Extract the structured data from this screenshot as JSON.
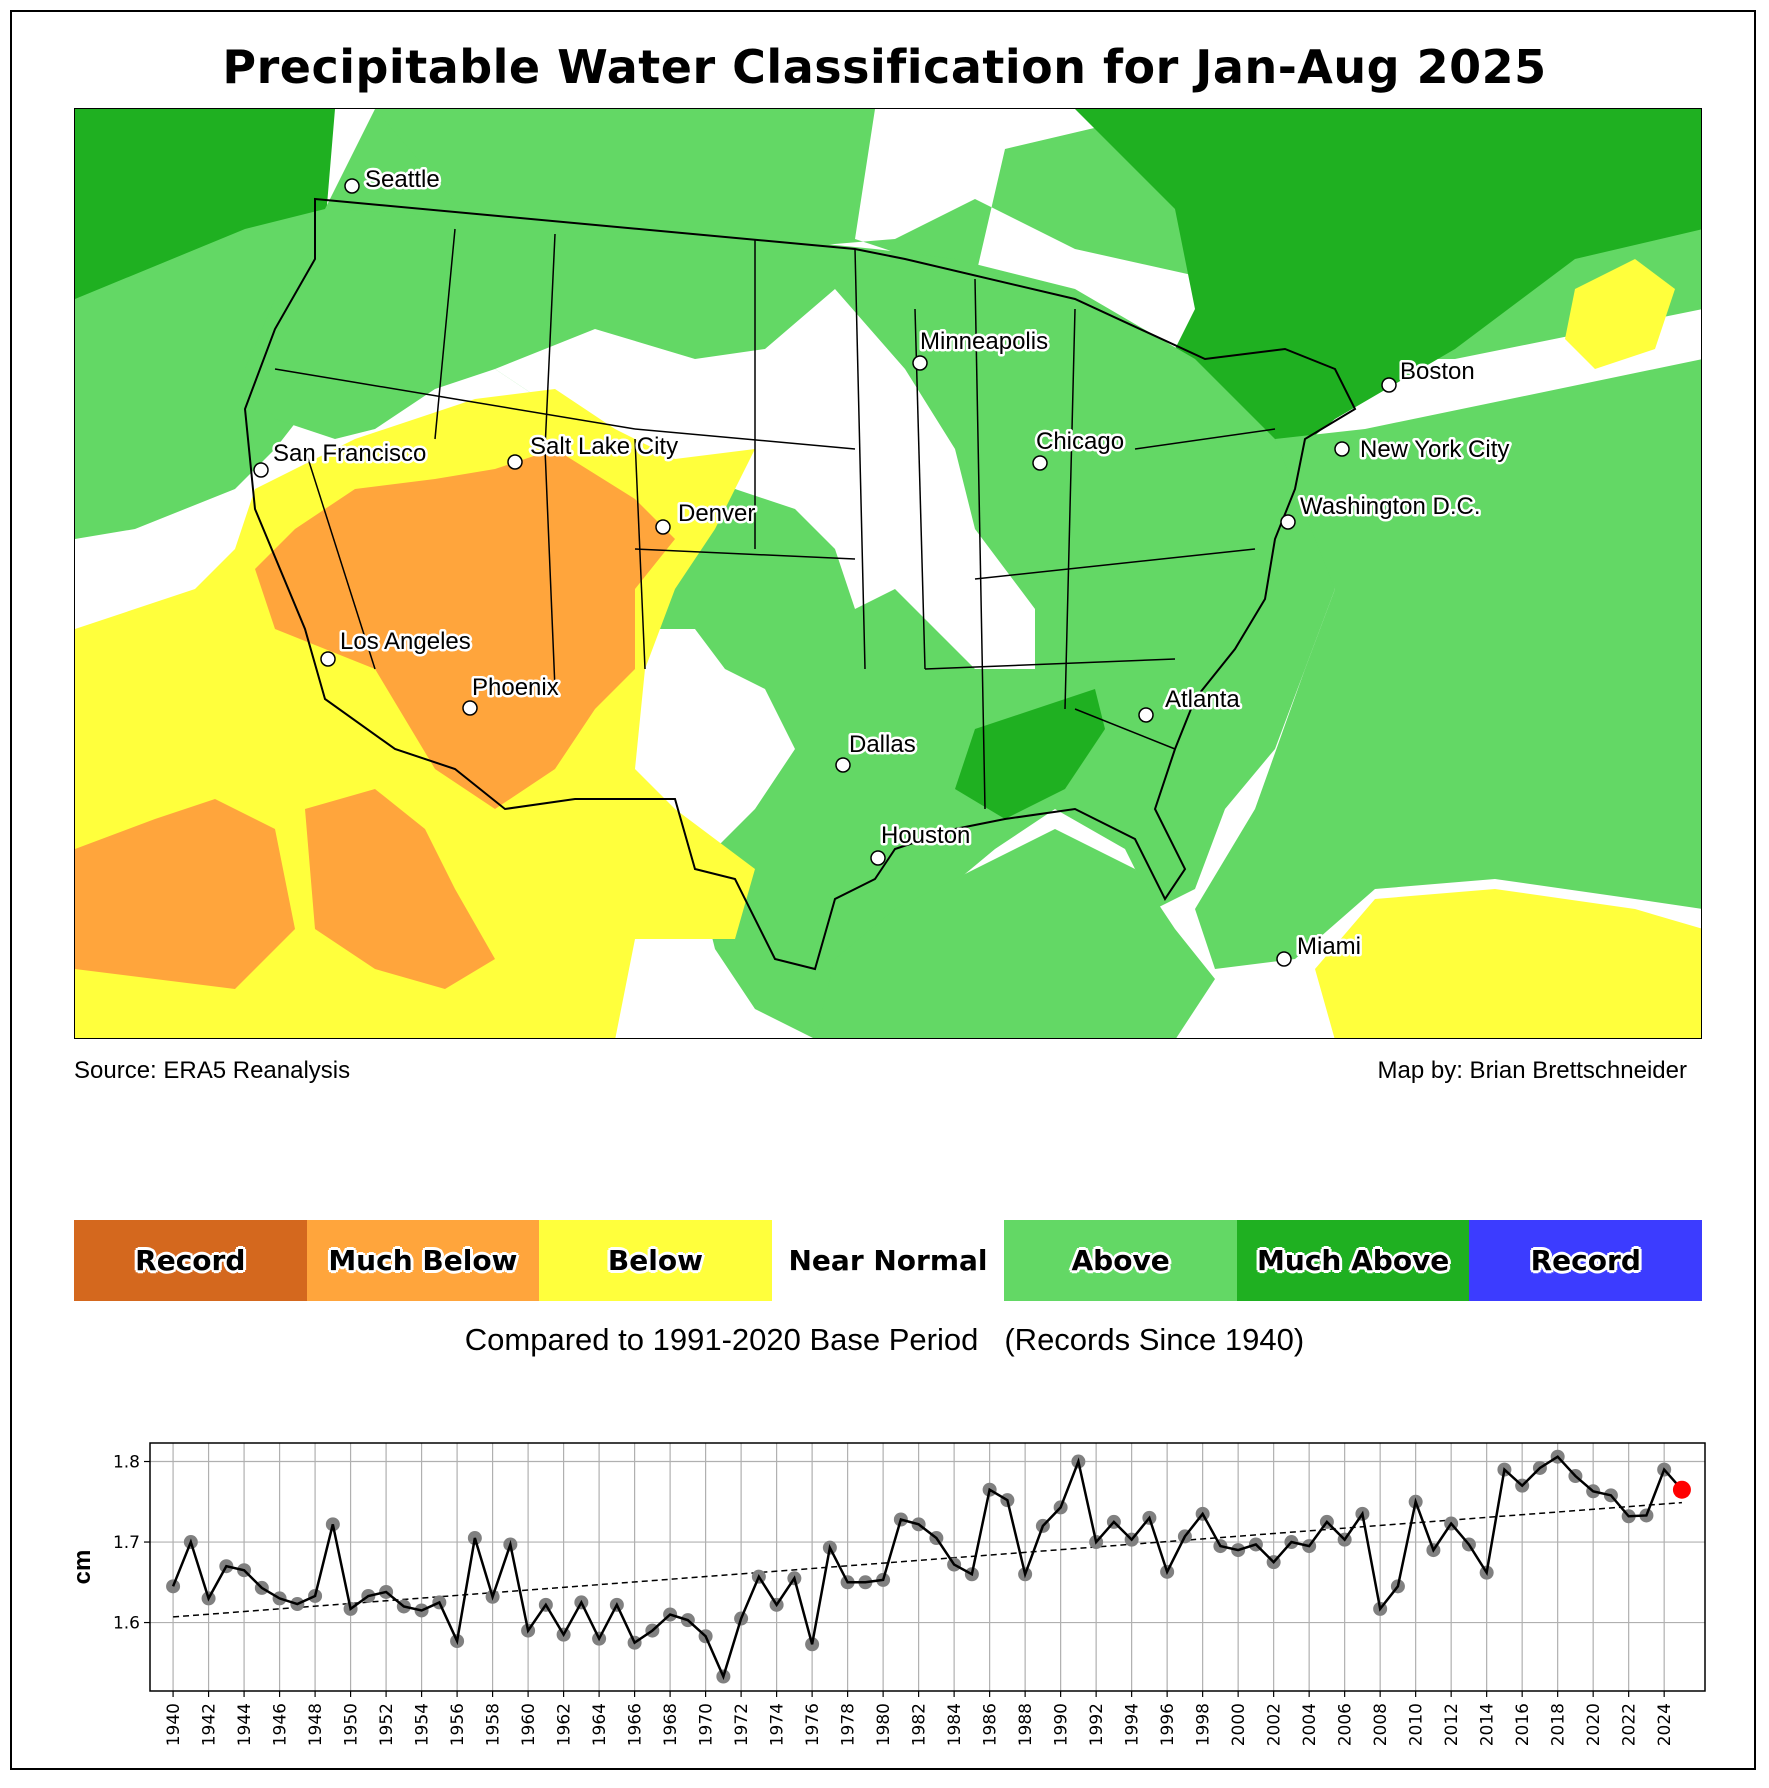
{
  "title": "Precipitable Water Classification for Jan-Aug 2025",
  "map": {
    "source": "Source: ERA5 Reanalysis",
    "credit": "Map by: Brian Brettschneider",
    "cities": [
      {
        "name": "Seattle"
      },
      {
        "name": "San Francisco"
      },
      {
        "name": "Los Angeles"
      },
      {
        "name": "Phoenix"
      },
      {
        "name": "Salt Lake City"
      },
      {
        "name": "Denver"
      },
      {
        "name": "Minneapolis"
      },
      {
        "name": "Chicago"
      },
      {
        "name": "Dallas"
      },
      {
        "name": "Houston"
      },
      {
        "name": "Atlanta"
      },
      {
        "name": "Washington D.C."
      },
      {
        "name": "New York City"
      },
      {
        "name": "Boston"
      },
      {
        "name": "Miami"
      }
    ]
  },
  "legend": {
    "categories": [
      {
        "label": "Record",
        "color": "#d4681e"
      },
      {
        "label": "Much Below",
        "color": "#ffa53c"
      },
      {
        "label": "Below",
        "color": "#ffff3c"
      },
      {
        "label": "Near Normal",
        "color": "#ffffff"
      },
      {
        "label": "Above",
        "color": "#63d865"
      },
      {
        "label": "Much Above",
        "color": "#1fb021"
      },
      {
        "label": "Record",
        "color": "#3c3cff"
      }
    ],
    "base_period": "Compared to 1991-2020 Base Period",
    "records_note": "(Records Since 1940)"
  },
  "chart_data": {
    "type": "line",
    "title": "",
    "xlabel": "",
    "ylabel": "cm",
    "ylim": [
      1.515,
      1.823
    ],
    "xlim": [
      1938.7,
      2026.3
    ],
    "yticks": [
      1.6,
      1.7,
      1.8
    ],
    "ytick_labels": [
      "1.6",
      "1.7",
      "1.8"
    ],
    "xticks": [
      1940,
      1942,
      1944,
      1946,
      1948,
      1950,
      1952,
      1954,
      1956,
      1958,
      1960,
      1962,
      1964,
      1966,
      1968,
      1970,
      1972,
      1974,
      1976,
      1978,
      1980,
      1982,
      1984,
      1986,
      1988,
      1990,
      1992,
      1994,
      1996,
      1998,
      2000,
      2002,
      2004,
      2006,
      2008,
      2010,
      2012,
      2014,
      2016,
      2018,
      2020,
      2022,
      2024
    ],
    "grid": true,
    "x": [
      1940,
      1941,
      1942,
      1943,
      1944,
      1945,
      1946,
      1947,
      1948,
      1949,
      1950,
      1951,
      1952,
      1953,
      1954,
      1955,
      1956,
      1957,
      1958,
      1959,
      1960,
      1961,
      1962,
      1963,
      1964,
      1965,
      1966,
      1967,
      1968,
      1969,
      1970,
      1971,
      1972,
      1973,
      1974,
      1975,
      1976,
      1977,
      1978,
      1979,
      1980,
      1981,
      1982,
      1983,
      1984,
      1985,
      1986,
      1987,
      1988,
      1989,
      1990,
      1991,
      1992,
      1993,
      1994,
      1995,
      1996,
      1997,
      1998,
      1999,
      2000,
      2001,
      2002,
      2003,
      2004,
      2005,
      2006,
      2007,
      2008,
      2009,
      2010,
      2011,
      2012,
      2013,
      2014,
      2015,
      2016,
      2017,
      2018,
      2019,
      2020,
      2021,
      2022,
      2023,
      2024,
      2025
    ],
    "series": [
      {
        "name": "Precipitable water",
        "color": "#000000",
        "marker_color": "#808080",
        "values": [
          1.645,
          1.7,
          1.63,
          1.67,
          1.665,
          1.643,
          1.63,
          1.623,
          1.633,
          1.722,
          1.617,
          1.633,
          1.638,
          1.62,
          1.615,
          1.625,
          1.577,
          1.705,
          1.632,
          1.697,
          1.59,
          1.622,
          1.585,
          1.625,
          1.58,
          1.622,
          1.575,
          1.59,
          1.61,
          1.603,
          1.583,
          1.533,
          1.605,
          1.657,
          1.622,
          1.655,
          1.573,
          1.693,
          1.65,
          1.65,
          1.653,
          1.728,
          1.722,
          1.705,
          1.672,
          1.66,
          1.765,
          1.752,
          1.66,
          1.72,
          1.743,
          1.8,
          1.7,
          1.725,
          1.703,
          1.73,
          1.663,
          1.707,
          1.735,
          1.695,
          1.69,
          1.697,
          1.675,
          1.7,
          1.695,
          1.725,
          1.703,
          1.735,
          1.617,
          1.645,
          1.75,
          1.69,
          1.723,
          1.697,
          1.662,
          1.79,
          1.77,
          1.792,
          1.806,
          1.782,
          1.763,
          1.758,
          1.732,
          1.733,
          1.79,
          1.765
        ]
      }
    ],
    "highlight": {
      "x": 2025,
      "value": 1.765,
      "color": "#ff0000"
    },
    "trend": {
      "name": "Linear trend",
      "x": [
        1940,
        2025
      ],
      "values": [
        1.607,
        1.749
      ],
      "style": "dashed"
    }
  }
}
